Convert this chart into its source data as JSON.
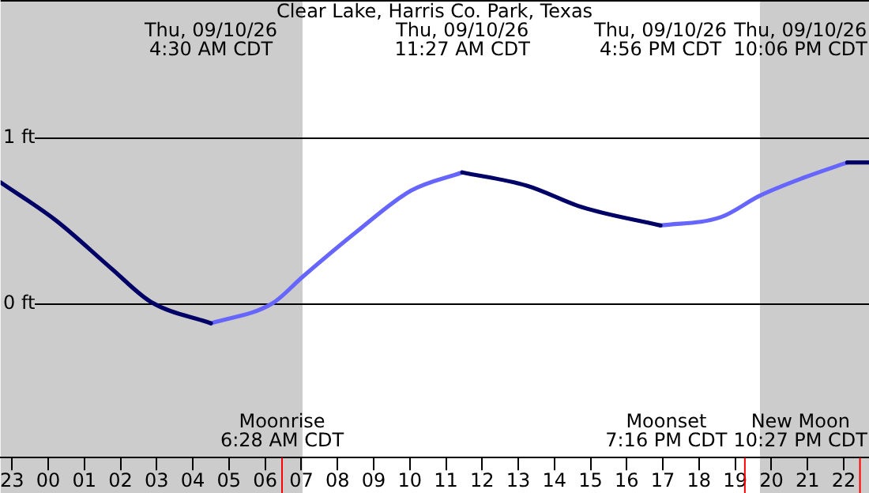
{
  "chart_data": {
    "type": "line",
    "title": "Clear Lake, Harris Co. Park, Texas",
    "x": [
      "--09-09T22:41",
      "--09-10T00:13",
      "--09-10T01:45",
      "--09-10T02:50",
      "--09-10T04:30",
      "--09-10T06:12",
      "--09-10T07:02",
      "--09-10T08:31",
      "--09-10T10:02",
      "--09-10T11:27",
      "--09-10T13:14",
      "--09-10T14:46",
      "--09-10T16:56",
      "--09-10T18:36",
      "--09-10T19:41",
      "--09-10T20:55",
      "--09-10T22:06",
      "--09-10T22:42"
    ],
    "series": [
      {
        "color": "#000066",
        "values": [
          0.73,
          0.5,
          0.21,
          0.01,
          -0.12,
          null,
          null,
          null,
          null,
          0.79,
          0.71,
          0.58,
          0.47,
          null,
          null,
          null,
          0.85,
          0.85
        ]
      },
      {
        "color": "#6666ff",
        "values": [
          null,
          null,
          null,
          null,
          -0.12,
          0.0,
          0.16,
          0.43,
          0.68,
          0.79,
          null,
          null,
          0.47,
          0.52,
          0.65,
          0.76,
          0.85,
          null
        ]
      }
    ],
    "xlim": [
      "--09-09T22:41",
      "--09-10T22:42"
    ],
    "xticks": [
      {
        "value": "--09-09T23:00",
        "label": "23"
      },
      {
        "value": "--09-10T00:00",
        "label": "00"
      },
      {
        "value": "--09-10T01:00",
        "label": "01"
      },
      {
        "value": "--09-10T02:00",
        "label": "02"
      },
      {
        "value": "--09-10T03:00",
        "label": "03"
      },
      {
        "value": "--09-10T04:00",
        "label": "04"
      },
      {
        "value": "--09-10T05:00",
        "label": "05"
      },
      {
        "value": "--09-10T06:00",
        "label": "06"
      },
      {
        "value": "--09-10T07:00",
        "label": "07"
      },
      {
        "value": "--09-10T08:00",
        "label": "08"
      },
      {
        "value": "--09-10T09:00",
        "label": "09"
      },
      {
        "value": "--09-10T10:00",
        "label": "10"
      },
      {
        "value": "--09-10T11:00",
        "label": "11"
      },
      {
        "value": "--09-10T12:00",
        "label": "12"
      },
      {
        "value": "--09-10T13:00",
        "label": "13"
      },
      {
        "value": "--09-10T14:00",
        "label": "14"
      },
      {
        "value": "--09-10T15:00",
        "label": "15"
      },
      {
        "value": "--09-10T16:00",
        "label": "16"
      },
      {
        "value": "--09-10T17:00",
        "label": "17"
      },
      {
        "value": "--09-10T18:00",
        "label": "18"
      },
      {
        "value": "--09-10T19:00",
        "label": "19"
      },
      {
        "value": "--09-10T20:00",
        "label": "20"
      },
      {
        "value": "--09-10T21:00",
        "label": "21"
      },
      {
        "value": "--09-10T22:00",
        "label": "22"
      }
    ],
    "ylim": [
      -0.93,
      1.83
    ],
    "yticks": [
      {
        "value": 0,
        "label": "0 ft"
      },
      {
        "value": 1,
        "label": "1 ft"
      }
    ],
    "grid": "y",
    "bands": [
      {
        "axis": "x",
        "from": "--09-09T22:41",
        "to": "--09-10T07:02",
        "color": "#cccccc"
      },
      {
        "axis": "x",
        "from": "--09-10T19:41",
        "to": "--09-10T22:42",
        "color": "#cccccc"
      }
    ],
    "ref_lines": [
      {
        "axis": "x",
        "value": "--09-10T06:28",
        "label": "Moonrise\n6:28 AM CDT",
        "color": "#ff0000"
      },
      {
        "axis": "x",
        "value": "--09-10T19:16",
        "label": "Moonset\n7:16 PM CDT",
        "color": "#ff0000"
      },
      {
        "axis": "x",
        "value": "--09-10T22:27",
        "label": "New Moon\n10:27 PM CDT",
        "color": "#ff0000"
      }
    ],
    "annotations": [
      "Thu, 09/10/26\n4:30 AM CDT",
      "Thu, 09/10/26\n11:27 AM CDT",
      "Thu, 09/10/26\n4:56 PM CDT",
      "Thu, 09/10/26\n10:06 PM CDT"
    ]
  }
}
